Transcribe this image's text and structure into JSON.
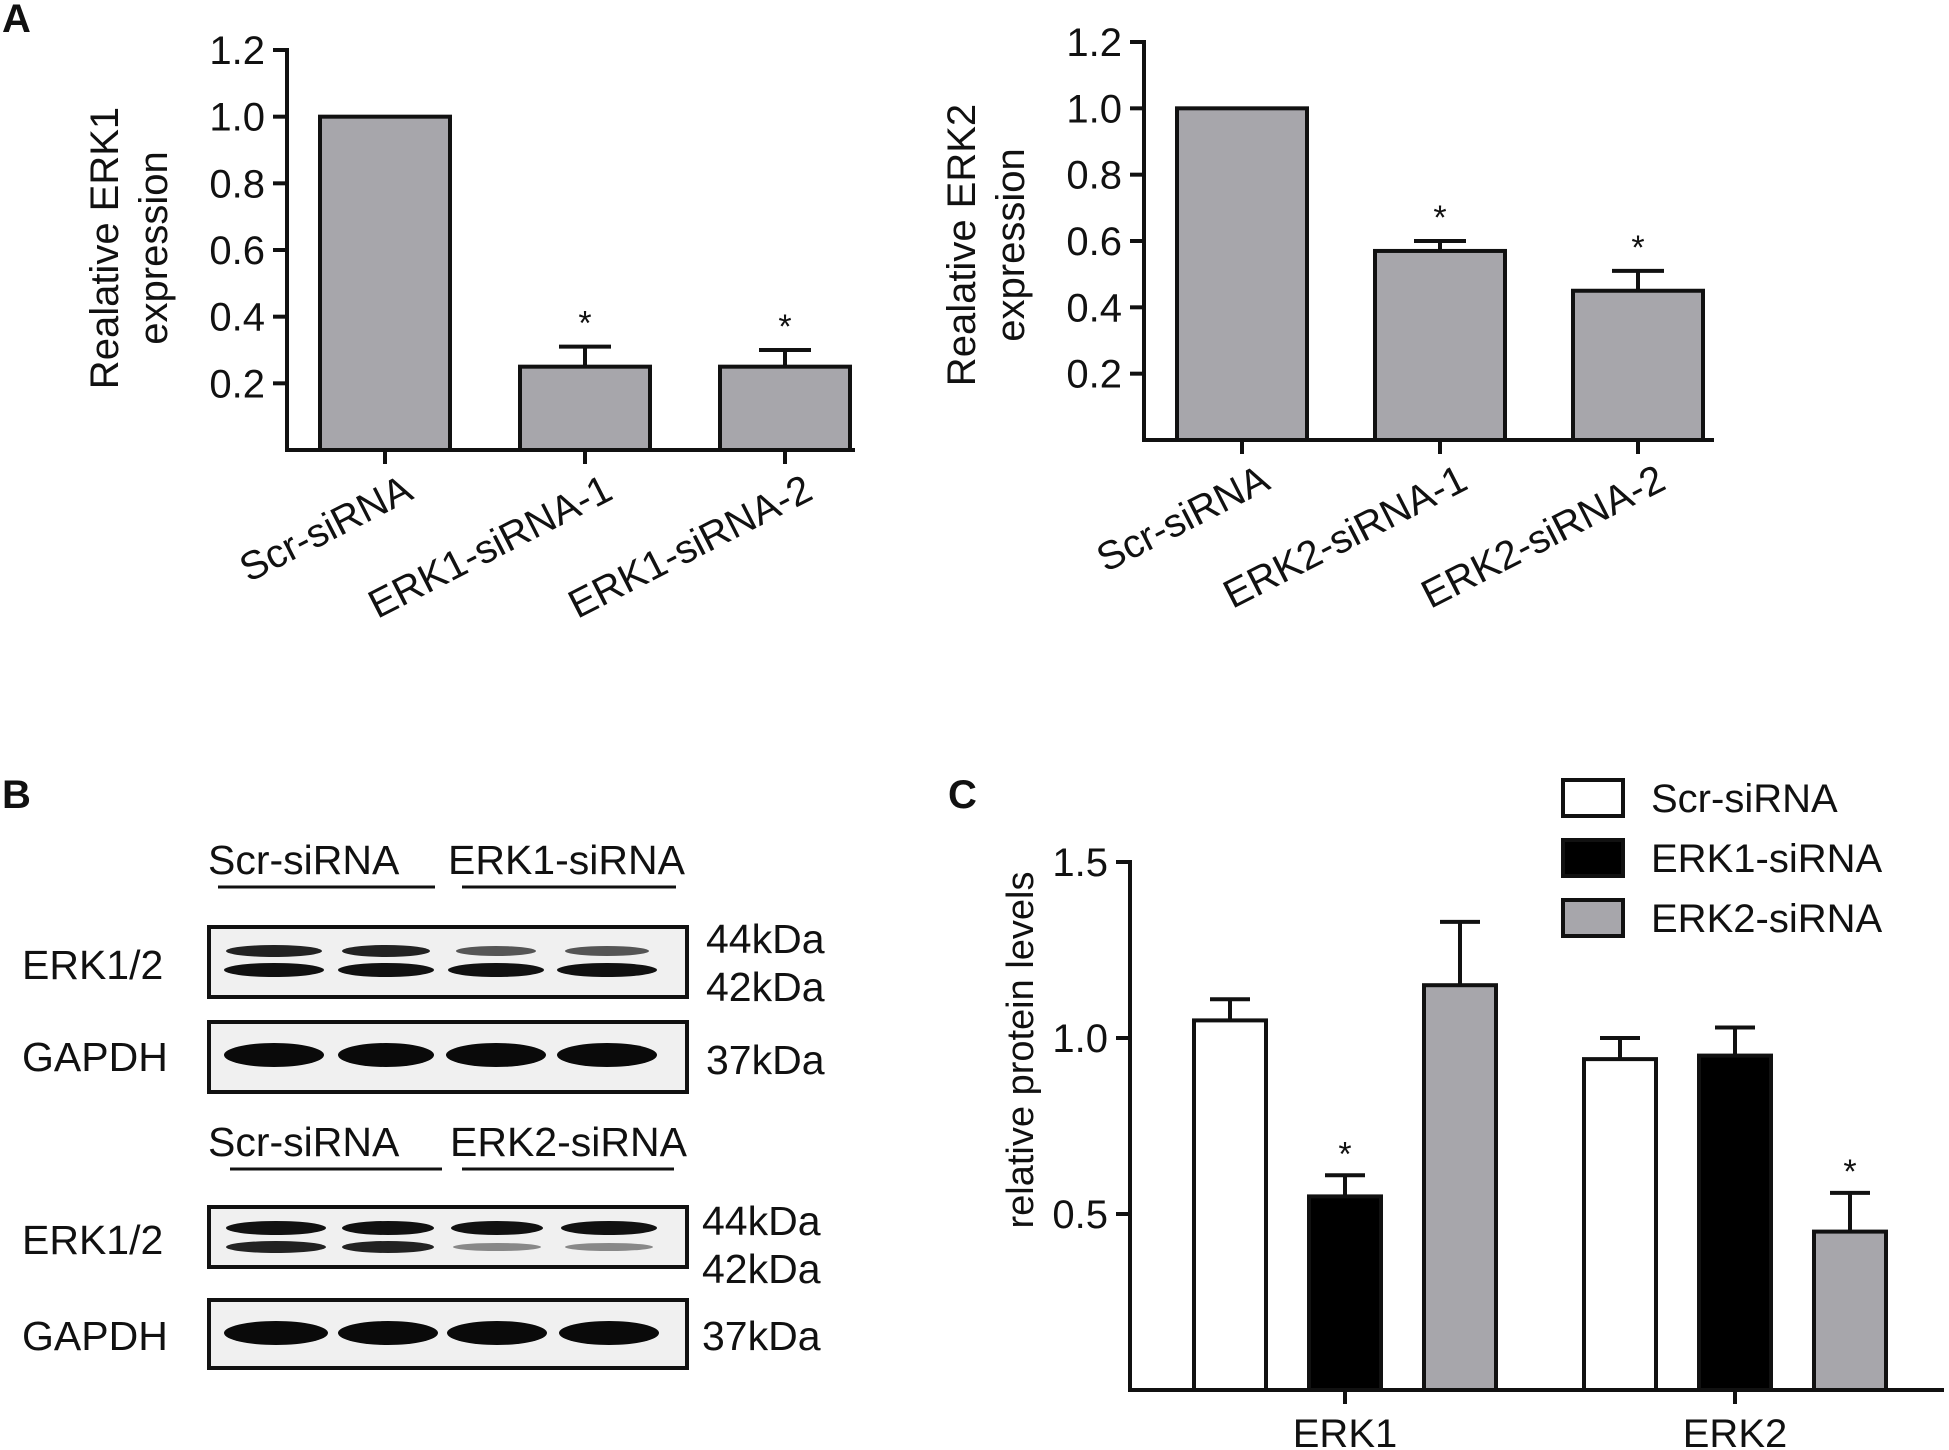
{
  "panel_labels": {
    "A": "A",
    "B": "B",
    "C": "C"
  },
  "colors": {
    "bar_gray": "#a7a6ab",
    "black": "#000000",
    "white": "#ffffff",
    "blot_bg": "#f0f0f0"
  },
  "chart_data": [
    {
      "id": "A1",
      "type": "bar",
      "ylabel": [
        "Realative ERK1",
        "expression"
      ],
      "ylim": [
        0,
        1.2
      ],
      "yticks": [
        "0.2",
        "0.4",
        "0.6",
        "0.8",
        "1.0",
        "1.2"
      ],
      "categories": [
        "Scr-siRNA",
        "ERK1-siRNA-1",
        "ERK1-siRNA-2"
      ],
      "values": [
        1.0,
        0.25,
        0.25
      ],
      "errors": [
        0,
        0.06,
        0.05
      ],
      "significance": [
        "",
        "*",
        "*"
      ]
    },
    {
      "id": "A2",
      "type": "bar",
      "ylabel": [
        "Realative ERK2",
        "expression"
      ],
      "ylim": [
        0,
        1.2
      ],
      "yticks": [
        "0.2",
        "0.4",
        "0.6",
        "0.8",
        "1.0",
        "1.2"
      ],
      "categories": [
        "Scr-siRNA",
        "ERK2-siRNA-1",
        "ERK2-siRNA-2"
      ],
      "values": [
        1.0,
        0.57,
        0.45
      ],
      "errors": [
        0,
        0.03,
        0.06
      ],
      "significance": [
        "",
        "*",
        "*"
      ]
    },
    {
      "id": "C",
      "type": "bar",
      "ylabel": "relative protein levels",
      "ylim": [
        0,
        1.5
      ],
      "yticks": [
        "0.5",
        "1.0",
        "1.5"
      ],
      "categories": [
        "ERK1",
        "ERK2"
      ],
      "series": [
        {
          "name": "Scr-siRNA",
          "values": [
            1.05,
            0.94
          ],
          "errors": [
            0.06,
            0.06
          ],
          "significance": [
            "",
            ""
          ]
        },
        {
          "name": "ERK1-siRNA",
          "values": [
            0.55,
            0.95
          ],
          "errors": [
            0.06,
            0.08
          ],
          "significance": [
            "*",
            ""
          ]
        },
        {
          "name": "ERK2-siRNA",
          "values": [
            1.15,
            0.45
          ],
          "errors": [
            0.18,
            0.11
          ],
          "significance": [
            "",
            "*"
          ]
        }
      ],
      "legend": "top-right"
    }
  ],
  "western_blot": {
    "top": {
      "group_left": "Scr-siRNA",
      "group_right": "ERK1-siRNA",
      "row1_label": "ERK1/2",
      "row2_label": "GAPDH",
      "mw_upper": "44kDa",
      "mw_lower": "42kDa",
      "mw_gapdh": "37kDa"
    },
    "bottom": {
      "group_left": "Scr-siRNA",
      "group_right": "ERK2-siRNA",
      "row1_label": "ERK1/2",
      "row2_label": "GAPDH",
      "mw_upper": "44kDa",
      "mw_lower": "42kDa",
      "mw_gapdh": "37kDa"
    }
  }
}
